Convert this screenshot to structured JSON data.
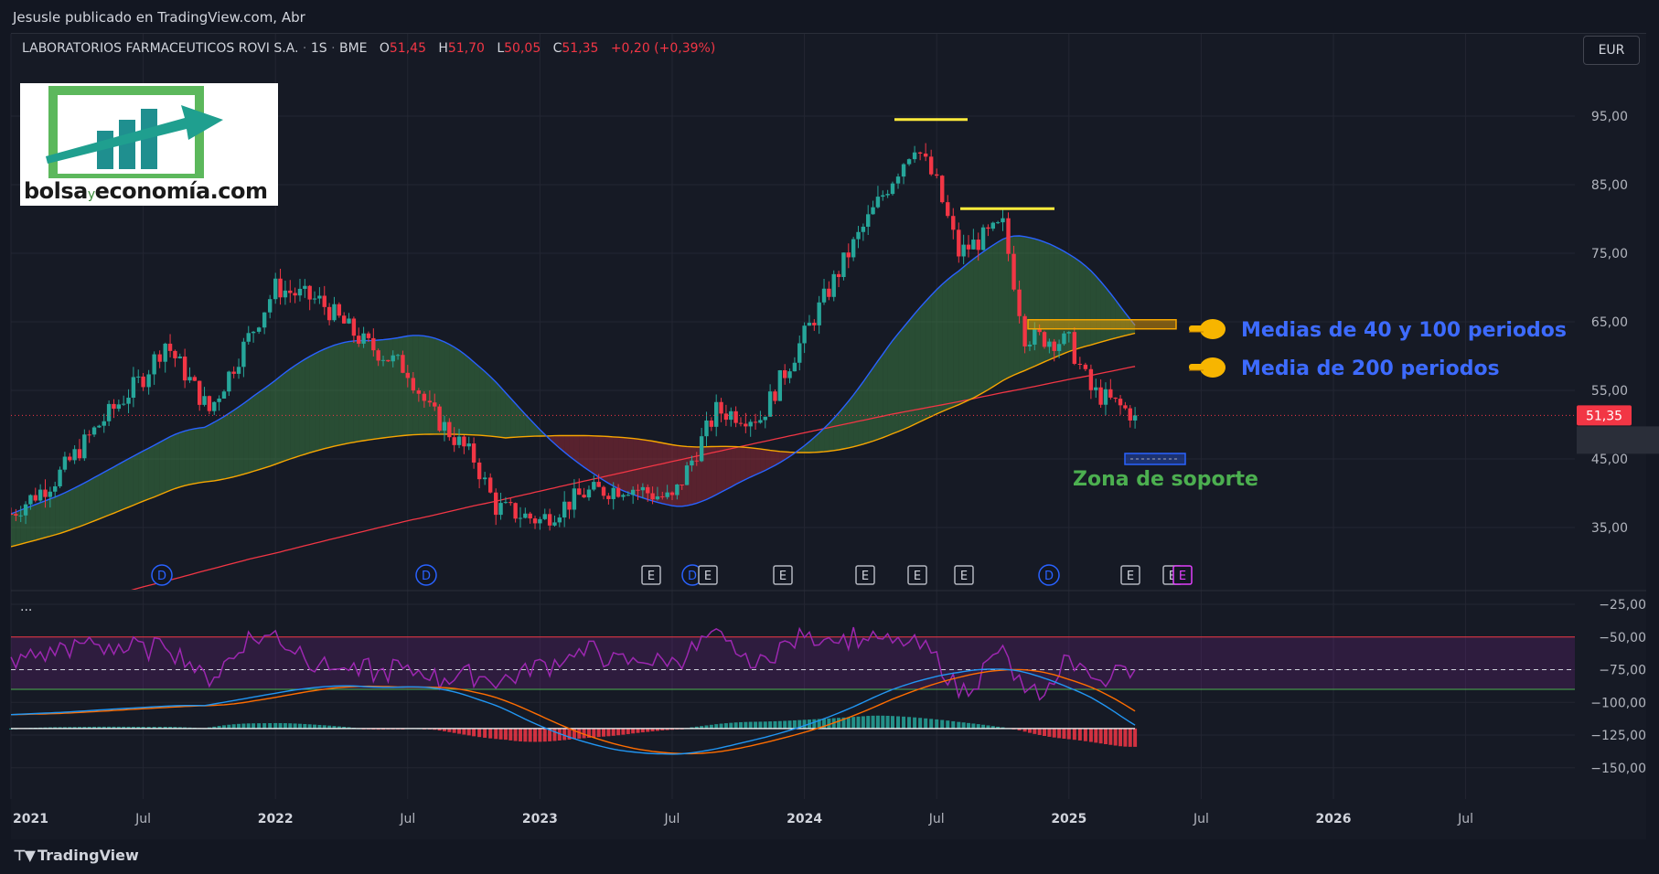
{
  "header": {
    "published_by": "Jesusle publicado en TradingView.com, Abr"
  },
  "symbol": {
    "name": "LABORATORIOS FARMACEUTICOS ROVI S.A.",
    "interval": "1S",
    "exchange": "BME",
    "open_label": "O",
    "open": "51,45",
    "high_label": "H",
    "high": "51,70",
    "low_label": "L",
    "low": "50,05",
    "close_label": "C",
    "close": "51,35",
    "change": "+0,20 (+0,39%)"
  },
  "currency_button": "EUR",
  "logo": {
    "pre": "bolsa",
    "y": "y",
    "post": "economía",
    "tld": ".com"
  },
  "annotations": {
    "ma_40_100": "Medias de 40 y 100 periodos",
    "ma_200": "Media de 200 periodos",
    "support": "Zona de soporte"
  },
  "colors": {
    "up": "#26a69a",
    "down": "#f23645",
    "ma40": "#2962ff",
    "ma100": "#f7a600",
    "ma200": "#f23645",
    "rsi": "#9c27b0",
    "macd": "#2196f3",
    "signal": "#ff6d00",
    "annotation_blue": "#3d6bff",
    "annotation_green": "#4caf50",
    "peak_line": "#ffeb3b"
  },
  "footer": {
    "brand": "TradingView"
  },
  "chart_data": [
    {
      "type": "candlestick",
      "title": "",
      "ylim": [
        28,
        100
      ],
      "y_ticks": [
        "95,00",
        "85,00",
        "75,00",
        "65,00",
        "55,00",
        "45,00",
        "35,00"
      ],
      "x_ticks": [
        "2021",
        "Jul",
        "2022",
        "Jul",
        "2023",
        "Jul",
        "2024",
        "Jul",
        "2025",
        "Jul",
        "2026",
        "Jul"
      ],
      "last_price_label": "51,35",
      "close_path": [
        [
          "2021-01",
          37
        ],
        [
          "2021-03",
          42
        ],
        [
          "2021-05",
          50
        ],
        [
          "2021-07",
          57
        ],
        [
          "2021-08",
          62
        ],
        [
          "2021-10",
          52
        ],
        [
          "2021-12",
          64
        ],
        [
          "2022-01",
          70
        ],
        [
          "2022-03",
          68
        ],
        [
          "2022-05",
          62
        ],
        [
          "2022-07",
          58
        ],
        [
          "2022-08",
          52
        ],
        [
          "2022-10",
          45
        ],
        [
          "2022-11",
          38
        ],
        [
          "2023-01",
          36
        ],
        [
          "2023-03",
          40
        ],
        [
          "2023-05",
          41
        ],
        [
          "2023-07",
          39
        ],
        [
          "2023-09",
          52
        ],
        [
          "2023-11",
          51
        ],
        [
          "2024-01",
          63
        ],
        [
          "2024-03",
          75
        ],
        [
          "2024-05",
          86
        ],
        [
          "2024-06",
          91
        ],
        [
          "2024-07",
          85
        ],
        [
          "2024-08",
          75
        ],
        [
          "2024-10",
          79
        ],
        [
          "2024-11",
          63
        ],
        [
          "2025-01",
          62
        ],
        [
          "2025-02",
          55
        ],
        [
          "2025-04",
          51.35
        ]
      ],
      "events": [
        "D",
        "D",
        "E",
        "D",
        "E",
        "E",
        "E",
        "E",
        "E",
        "D",
        "E",
        "E",
        "E"
      ],
      "moving_averages": [
        {
          "name": "MA40",
          "from": 29,
          "to": 64.5
        },
        {
          "name": "MA100",
          "from": 25,
          "to": 64
        },
        {
          "name": "MA200",
          "from": 20,
          "to": 58.5
        }
      ],
      "peak_levels": [
        94.5,
        81.5
      ]
    },
    {
      "type": "line",
      "title": "",
      "ylim": [
        -155,
        -20
      ],
      "y_ticks": [
        "−25,00",
        "−50,00",
        "−75,00",
        "−100,00",
        "−125,00",
        "−150,00"
      ],
      "bands": [
        -50,
        -75,
        -90
      ]
    }
  ]
}
